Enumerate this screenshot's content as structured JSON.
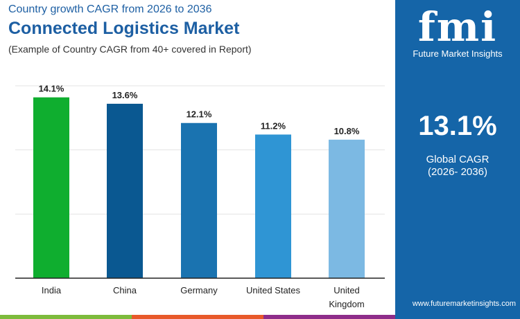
{
  "header": {
    "subtitle": "Country growth CAGR from 2026 to 2036",
    "title": "Connected Logistics Market",
    "note": "(Example of Country CAGR from 40+ covered in Report)"
  },
  "panel": {
    "logo_text": "fmi",
    "brand": "Future Market Insights",
    "cagr": "13.1%",
    "cagr_label": "Global CAGR",
    "cagr_period": "(2026- 2036)",
    "url": "www.futuremarketinsights.com",
    "color": "#1565a8"
  },
  "chart_data": {
    "type": "bar",
    "categories": [
      "India",
      "China",
      "Germany",
      "United States",
      "United Kingdom"
    ],
    "values": [
      14.1,
      13.6,
      12.1,
      11.2,
      10.8
    ],
    "labels": [
      "14.1%",
      "13.6%",
      "12.1%",
      "11.2%",
      "10.8%"
    ],
    "colors": [
      "#0fae2f",
      "#0a5891",
      "#1a73b0",
      "#2f95d4",
      "#7cb9e3"
    ],
    "ylim": [
      0,
      15
    ],
    "grid": true
  },
  "footer_colors": [
    "#7dbb3c",
    "#e8592a",
    "#8e2d8a"
  ]
}
